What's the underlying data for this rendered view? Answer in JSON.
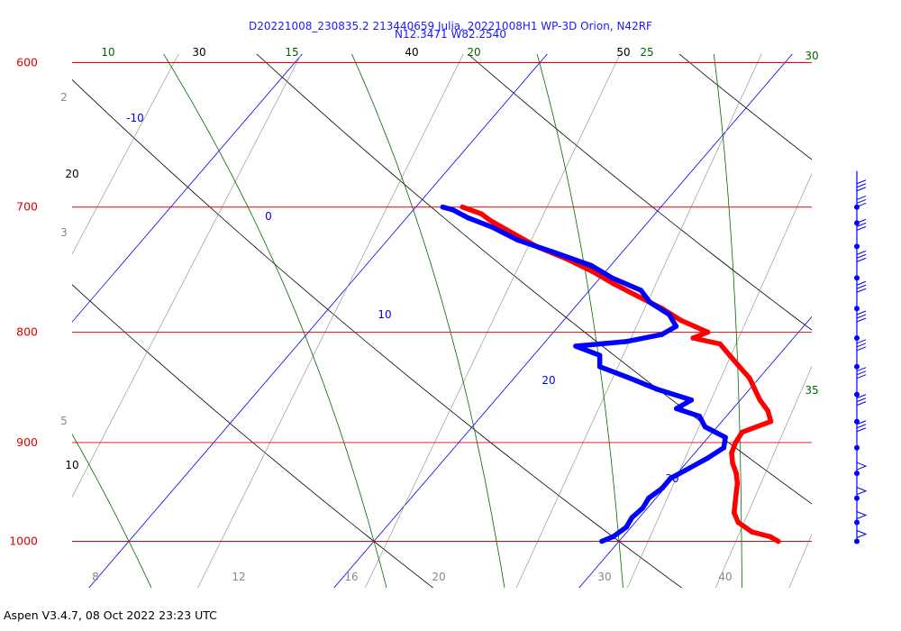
{
  "title": {
    "line1": "D20221008_230835.2 213440659 Julia, 20221008H1 WP-3D Orion, N42RF",
    "line2": "N12.3471 W82.2540"
  },
  "footer": "Aspen V3.4.7, 08 Oct 2022  23:23 UTC",
  "colors": {
    "isobar": "#e00000",
    "isotherm": "#0000ee",
    "dry_adiabat": "#000000",
    "moist_adiabat": "#006600",
    "mixing_ratio": "#888888",
    "temperature": "#ff0000",
    "dewpoint": "#0000ff",
    "wind": "#0000ff"
  },
  "chart_data": {
    "type": "skew-t",
    "pressure_range": [
      600,
      1030
    ],
    "temperature_range": [
      -12,
      46
    ],
    "isobars": [
      {
        "value": 600,
        "label": "600"
      },
      {
        "value": 700,
        "label": "700"
      },
      {
        "value": 800,
        "label": "800"
      },
      {
        "value": 900,
        "label": "900"
      },
      {
        "value": 1000,
        "label": "1000"
      }
    ],
    "isotherms": [
      {
        "value": -10,
        "label": "-10"
      },
      {
        "value": 0,
        "label": "0"
      },
      {
        "value": 10,
        "label": "10"
      },
      {
        "value": 20,
        "label": "20"
      },
      {
        "value": 30,
        "label": "30"
      }
    ],
    "bottom_tick_labels": [
      "8",
      "12",
      "16",
      "20",
      "30",
      "40"
    ],
    "dry_adiabat_labels": [
      "10",
      "20",
      "30",
      "40",
      "50"
    ],
    "moist_adiabat_labels": [
      "10",
      "15",
      "20",
      "25",
      "30",
      "35"
    ],
    "mixing_ratio_labels": [
      "2",
      "3",
      "5"
    ],
    "temperature_profile": [
      {
        "p": 1000,
        "t": 26.5
      },
      {
        "p": 995,
        "t": 26.0
      },
      {
        "p": 990,
        "t": 25.1
      },
      {
        "p": 980,
        "t": 24.2
      },
      {
        "p": 970,
        "t": 23.7
      },
      {
        "p": 960,
        "t": 23.4
      },
      {
        "p": 950,
        "t": 23.1
      },
      {
        "p": 940,
        "t": 22.8
      },
      {
        "p": 930,
        "t": 22.4
      },
      {
        "p": 920,
        "t": 21.9
      },
      {
        "p": 910,
        "t": 21.5
      },
      {
        "p": 900,
        "t": 21.3
      },
      {
        "p": 890,
        "t": 21.2
      },
      {
        "p": 880,
        "t": 22.0
      },
      {
        "p": 870,
        "t": 21.5
      },
      {
        "p": 860,
        "t": 20.8
      },
      {
        "p": 850,
        "t": 20.2
      },
      {
        "p": 840,
        "t": 19.6
      },
      {
        "p": 830,
        "t": 18.8
      },
      {
        "p": 820,
        "t": 18.0
      },
      {
        "p": 810,
        "t": 17.2
      },
      {
        "p": 805,
        "t": 15.9
      },
      {
        "p": 800,
        "t": 16.3
      },
      {
        "p": 790,
        "t": 14.8
      },
      {
        "p": 780,
        "t": 13.6
      },
      {
        "p": 770,
        "t": 12.2
      },
      {
        "p": 760,
        "t": 10.8
      },
      {
        "p": 750,
        "t": 9.5
      },
      {
        "p": 740,
        "t": 8.0
      },
      {
        "p": 730,
        "t": 6.3
      },
      {
        "p": 720,
        "t": 4.9
      },
      {
        "p": 710,
        "t": 3.5
      },
      {
        "p": 705,
        "t": 2.9
      },
      {
        "p": 700,
        "t": 1.9
      }
    ],
    "dewpoint_profile": [
      {
        "p": 1000,
        "t": 19.3
      },
      {
        "p": 995,
        "t": 19.6
      },
      {
        "p": 985,
        "t": 19.8
      },
      {
        "p": 975,
        "t": 19.7
      },
      {
        "p": 965,
        "t": 19.8
      },
      {
        "p": 955,
        "t": 19.7
      },
      {
        "p": 945,
        "t": 19.9
      },
      {
        "p": 935,
        "t": 19.9
      },
      {
        "p": 925,
        "t": 20.3
      },
      {
        "p": 915,
        "t": 20.7
      },
      {
        "p": 905,
        "t": 21.0
      },
      {
        "p": 895,
        "t": 20.7
      },
      {
        "p": 885,
        "t": 19.5
      },
      {
        "p": 875,
        "t": 18.9
      },
      {
        "p": 868,
        "t": 17.7
      },
      {
        "p": 860,
        "t": 18.0
      },
      {
        "p": 850,
        "t": 16.2
      },
      {
        "p": 840,
        "t": 14.7
      },
      {
        "p": 830,
        "t": 13.1
      },
      {
        "p": 820,
        "t": 12.7
      },
      {
        "p": 812,
        "t": 11.4
      },
      {
        "p": 808,
        "t": 13.3
      },
      {
        "p": 802,
        "t": 14.5
      },
      {
        "p": 795,
        "t": 14.8
      },
      {
        "p": 785,
        "t": 14.1
      },
      {
        "p": 775,
        "t": 12.9
      },
      {
        "p": 765,
        "t": 12.1
      },
      {
        "p": 755,
        "t": 10.5
      },
      {
        "p": 745,
        "t": 9.2
      },
      {
        "p": 735,
        "t": 7.3
      },
      {
        "p": 725,
        "t": 5.3
      },
      {
        "p": 715,
        "t": 3.8
      },
      {
        "p": 708,
        "t": 2.5
      },
      {
        "p": 702,
        "t": 1.6
      },
      {
        "p": 700,
        "t": 1.1
      }
    ],
    "wind_barbs": [
      {
        "p": 700
      },
      {
        "p": 712
      },
      {
        "p": 730
      },
      {
        "p": 755
      },
      {
        "p": 780
      },
      {
        "p": 805
      },
      {
        "p": 830
      },
      {
        "p": 855
      },
      {
        "p": 880
      },
      {
        "p": 905
      },
      {
        "p": 930
      },
      {
        "p": 955
      },
      {
        "p": 980
      },
      {
        "p": 1000
      }
    ]
  }
}
